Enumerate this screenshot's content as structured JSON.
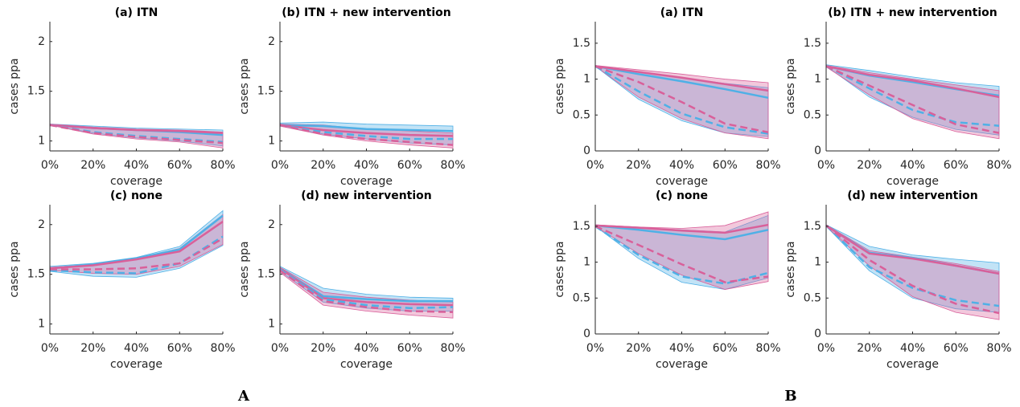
{
  "panel_labels": [
    "A",
    "B"
  ],
  "chart_data": [
    {
      "type": "line",
      "title": "(a) ITN",
      "xlabel": "coverage",
      "ylabel": "cases ppa",
      "categories": [
        "0%",
        "20%",
        "40%",
        "60%",
        "80%"
      ],
      "ylim": [
        0.9,
        2.2
      ],
      "yticks": [
        1,
        1.5,
        2
      ],
      "series": [
        {
          "color": "#4fb0e6",
          "dash": false,
          "values": [
            1.16,
            1.13,
            1.11,
            1.09,
            1.06
          ]
        },
        {
          "color": "#d9609a",
          "dash": false,
          "values": [
            1.16,
            1.13,
            1.11,
            1.1,
            1.08
          ]
        },
        {
          "color": "#4fb0e6",
          "dash": true,
          "values": [
            1.16,
            1.09,
            1.05,
            1.02,
            0.99
          ]
        },
        {
          "color": "#d9609a",
          "dash": true,
          "values": [
            1.16,
            1.08,
            1.04,
            1.01,
            0.98
          ]
        }
      ],
      "bands": [
        {
          "color": "#4fb0e6",
          "lower": [
            1.16,
            1.08,
            1.03,
            1.0,
            0.95
          ],
          "upper": [
            1.17,
            1.15,
            1.13,
            1.12,
            1.11
          ]
        },
        {
          "color": "#d9609a",
          "lower": [
            1.16,
            1.07,
            1.02,
            0.99,
            0.93
          ],
          "upper": [
            1.17,
            1.14,
            1.12,
            1.11,
            1.09
          ]
        }
      ]
    },
    {
      "type": "line",
      "title": "(b) ITN + new intervention",
      "xlabel": "coverage",
      "ylabel": "cases ppa",
      "categories": [
        "0%",
        "20%",
        "40%",
        "60%",
        "80%"
      ],
      "ylim": [
        0.9,
        2.2
      ],
      "yticks": [
        1,
        1.5,
        2
      ],
      "series": [
        {
          "color": "#4fb0e6",
          "dash": false,
          "values": [
            1.16,
            1.15,
            1.12,
            1.11,
            1.1
          ]
        },
        {
          "color": "#d9609a",
          "dash": false,
          "values": [
            1.16,
            1.11,
            1.08,
            1.06,
            1.05
          ]
        },
        {
          "color": "#4fb0e6",
          "dash": true,
          "values": [
            1.16,
            1.09,
            1.05,
            1.02,
            1.02
          ]
        },
        {
          "color": "#d9609a",
          "dash": true,
          "values": [
            1.16,
            1.07,
            1.02,
            0.99,
            0.96
          ]
        }
      ],
      "bands": [
        {
          "color": "#4fb0e6",
          "lower": [
            1.15,
            1.07,
            1.02,
            0.98,
            0.96
          ],
          "upper": [
            1.18,
            1.19,
            1.17,
            1.16,
            1.15
          ]
        },
        {
          "color": "#d9609a",
          "lower": [
            1.15,
            1.06,
            1.0,
            0.96,
            0.93
          ],
          "upper": [
            1.17,
            1.16,
            1.12,
            1.1,
            1.08
          ]
        }
      ]
    },
    {
      "type": "line",
      "title": "(c) none",
      "xlabel": "coverage",
      "ylabel": "cases ppa",
      "categories": [
        "0%",
        "20%",
        "40%",
        "60%",
        "80%"
      ],
      "ylim": [
        0.9,
        2.2
      ],
      "yticks": [
        1,
        1.5,
        2
      ],
      "series": [
        {
          "color": "#4fb0e6",
          "dash": false,
          "values": [
            1.56,
            1.6,
            1.66,
            1.75,
            2.09
          ]
        },
        {
          "color": "#d9609a",
          "dash": false,
          "values": [
            1.56,
            1.59,
            1.65,
            1.73,
            2.03
          ]
        },
        {
          "color": "#4fb0e6",
          "dash": true,
          "values": [
            1.54,
            1.52,
            1.51,
            1.61,
            1.88
          ]
        },
        {
          "color": "#d9609a",
          "dash": true,
          "values": [
            1.55,
            1.55,
            1.56,
            1.61,
            1.86
          ]
        }
      ],
      "bands": [
        {
          "color": "#4fb0e6",
          "lower": [
            1.53,
            1.48,
            1.47,
            1.56,
            1.79
          ],
          "upper": [
            1.58,
            1.61,
            1.67,
            1.78,
            2.14
          ]
        },
        {
          "color": "#d9609a",
          "lower": [
            1.54,
            1.51,
            1.5,
            1.58,
            1.8
          ],
          "upper": [
            1.57,
            1.6,
            1.66,
            1.76,
            2.1
          ]
        }
      ]
    },
    {
      "type": "line",
      "title": "(d) new intervention",
      "xlabel": "coverage",
      "ylabel": "cases ppa",
      "categories": [
        "0%",
        "20%",
        "40%",
        "60%",
        "80%"
      ],
      "ylim": [
        0.9,
        2.2
      ],
      "yticks": [
        1,
        1.5,
        2
      ],
      "series": [
        {
          "color": "#4fb0e6",
          "dash": false,
          "values": [
            1.56,
            1.28,
            1.25,
            1.23,
            1.23
          ]
        },
        {
          "color": "#d9609a",
          "dash": false,
          "values": [
            1.56,
            1.26,
            1.22,
            1.2,
            1.19
          ]
        },
        {
          "color": "#4fb0e6",
          "dash": true,
          "values": [
            1.55,
            1.25,
            1.19,
            1.16,
            1.17
          ]
        },
        {
          "color": "#d9609a",
          "dash": true,
          "values": [
            1.54,
            1.23,
            1.17,
            1.13,
            1.12
          ]
        }
      ],
      "bands": [
        {
          "color": "#4fb0e6",
          "lower": [
            1.53,
            1.22,
            1.16,
            1.13,
            1.13
          ],
          "upper": [
            1.58,
            1.36,
            1.3,
            1.27,
            1.26
          ]
        },
        {
          "color": "#d9609a",
          "lower": [
            1.52,
            1.19,
            1.13,
            1.09,
            1.06
          ],
          "upper": [
            1.57,
            1.32,
            1.27,
            1.24,
            1.22
          ]
        }
      ]
    },
    {
      "type": "line",
      "title": "(a) ITN",
      "xlabel": "coverage",
      "ylabel": "cases ppa",
      "categories": [
        "0%",
        "20%",
        "40%",
        "60%",
        "80%"
      ],
      "ylim": [
        0,
        1.8
      ],
      "yticks": [
        0,
        0.5,
        1,
        1.5
      ],
      "series": [
        {
          "color": "#4fb0e6",
          "dash": false,
          "values": [
            1.18,
            1.07,
            0.97,
            0.86,
            0.74
          ]
        },
        {
          "color": "#d9609a",
          "dash": false,
          "values": [
            1.18,
            1.1,
            1.02,
            0.93,
            0.84
          ]
        },
        {
          "color": "#4fb0e6",
          "dash": true,
          "values": [
            1.18,
            0.83,
            0.52,
            0.33,
            0.24
          ]
        },
        {
          "color": "#d9609a",
          "dash": true,
          "values": [
            1.18,
            0.96,
            0.68,
            0.38,
            0.26
          ]
        }
      ],
      "bands": [
        {
          "color": "#4fb0e6",
          "lower": [
            1.18,
            0.72,
            0.42,
            0.25,
            0.2
          ],
          "upper": [
            1.19,
            1.1,
            1.02,
            0.94,
            0.88
          ]
        },
        {
          "color": "#d9609a",
          "lower": [
            1.18,
            0.75,
            0.45,
            0.25,
            0.17
          ],
          "upper": [
            1.19,
            1.13,
            1.07,
            1.0,
            0.95
          ]
        }
      ]
    },
    {
      "type": "line",
      "title": "(b) ITN + new intervention",
      "xlabel": "coverage",
      "ylabel": "cases ppa",
      "categories": [
        "0%",
        "20%",
        "40%",
        "60%",
        "80%"
      ],
      "ylim": [
        0,
        1.8
      ],
      "yticks": [
        0,
        0.5,
        1,
        1.5
      ],
      "series": [
        {
          "color": "#4fb0e6",
          "dash": false,
          "values": [
            1.18,
            1.05,
            0.96,
            0.86,
            0.77
          ]
        },
        {
          "color": "#d9609a",
          "dash": false,
          "values": [
            1.18,
            1.06,
            0.98,
            0.87,
            0.75
          ]
        },
        {
          "color": "#4fb0e6",
          "dash": true,
          "values": [
            1.18,
            0.87,
            0.57,
            0.4,
            0.35
          ]
        },
        {
          "color": "#d9609a",
          "dash": true,
          "values": [
            1.18,
            0.91,
            0.64,
            0.37,
            0.25
          ]
        }
      ],
      "bands": [
        {
          "color": "#4fb0e6",
          "lower": [
            1.18,
            0.75,
            0.47,
            0.3,
            0.22
          ],
          "upper": [
            1.2,
            1.12,
            1.03,
            0.95,
            0.9
          ]
        },
        {
          "color": "#d9609a",
          "lower": [
            1.17,
            0.78,
            0.45,
            0.27,
            0.17
          ],
          "upper": [
            1.19,
            1.09,
            1.0,
            0.92,
            0.84
          ]
        }
      ]
    },
    {
      "type": "line",
      "title": "(c) none",
      "xlabel": "coverage",
      "ylabel": "cases ppa",
      "categories": [
        "0%",
        "20%",
        "40%",
        "60%",
        "80%"
      ],
      "ylim": [
        0,
        1.8
      ],
      "yticks": [
        0,
        0.5,
        1,
        1.5
      ],
      "series": [
        {
          "color": "#4fb0e6",
          "dash": false,
          "values": [
            1.51,
            1.45,
            1.38,
            1.32,
            1.45
          ]
        },
        {
          "color": "#d9609a",
          "dash": false,
          "values": [
            1.51,
            1.48,
            1.44,
            1.41,
            1.52
          ]
        },
        {
          "color": "#4fb0e6",
          "dash": true,
          "values": [
            1.5,
            1.1,
            0.8,
            0.7,
            0.85
          ]
        },
        {
          "color": "#d9609a",
          "dash": true,
          "values": [
            1.5,
            1.24,
            0.97,
            0.72,
            0.8
          ]
        }
      ],
      "bands": [
        {
          "color": "#4fb0e6",
          "lower": [
            1.5,
            1.05,
            0.72,
            0.62,
            0.78
          ],
          "upper": [
            1.52,
            1.48,
            1.45,
            1.42,
            1.65
          ]
        },
        {
          "color": "#d9609a",
          "lower": [
            1.5,
            1.12,
            0.82,
            0.62,
            0.73
          ],
          "upper": [
            1.52,
            1.49,
            1.47,
            1.51,
            1.7
          ]
        }
      ]
    },
    {
      "type": "line",
      "title": "(d) new intervention",
      "xlabel": "coverage",
      "ylabel": "cases ppa",
      "categories": [
        "0%",
        "20%",
        "40%",
        "60%",
        "80%"
      ],
      "ylim": [
        0,
        1.8
      ],
      "yticks": [
        0,
        0.5,
        1,
        1.5
      ],
      "series": [
        {
          "color": "#4fb0e6",
          "dash": false,
          "values": [
            1.51,
            1.13,
            1.06,
            0.95,
            0.84
          ]
        },
        {
          "color": "#d9609a",
          "dash": false,
          "values": [
            1.51,
            1.12,
            1.05,
            0.95,
            0.84
          ]
        },
        {
          "color": "#4fb0e6",
          "dash": true,
          "values": [
            1.51,
            0.93,
            0.64,
            0.47,
            0.39
          ]
        },
        {
          "color": "#d9609a",
          "dash": true,
          "values": [
            1.51,
            1.03,
            0.67,
            0.42,
            0.29
          ]
        }
      ],
      "bands": [
        {
          "color": "#4fb0e6",
          "lower": [
            1.5,
            0.88,
            0.5,
            0.35,
            0.3
          ],
          "upper": [
            1.52,
            1.22,
            1.1,
            1.04,
            0.99
          ]
        },
        {
          "color": "#d9609a",
          "lower": [
            1.5,
            0.95,
            0.52,
            0.3,
            0.2
          ],
          "upper": [
            1.52,
            1.16,
            1.07,
            0.98,
            0.87
          ]
        }
      ]
    }
  ]
}
